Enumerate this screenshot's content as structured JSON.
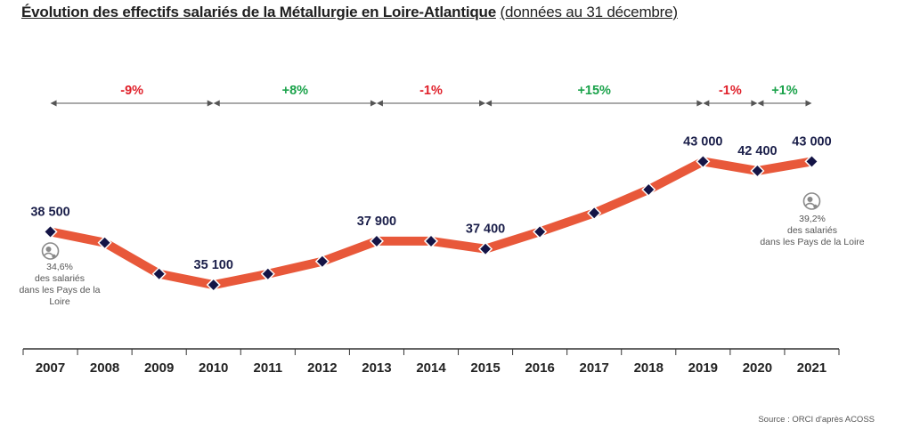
{
  "title": {
    "main": "Évolution des effectifs salariés de la Métallurgie en Loire-Atlantique",
    "sub": "(données au 31 décembre)"
  },
  "source": "Source : ORCI d'après ACOSS",
  "colors": {
    "line": "#e8583a",
    "marker": "#141446",
    "label": "#1b1f4a",
    "negative": "#e0202a",
    "positive": "#1aa24a",
    "arrow": "#555555",
    "axis": "#333333"
  },
  "notes": {
    "left": {
      "pct": "34,6%",
      "text1": "des salariés",
      "text2": "dans les Pays de la Loire",
      "icon": "globe-people-icon"
    },
    "right": {
      "pct": "39,2%",
      "text1": "des salariés",
      "text2": "dans les Pays de la Loire",
      "icon": "globe-people-icon"
    }
  },
  "chart_data": {
    "type": "line",
    "x": [
      "2007",
      "2008",
      "2009",
      "2010",
      "2011",
      "2012",
      "2013",
      "2014",
      "2015",
      "2016",
      "2017",
      "2018",
      "2019",
      "2020",
      "2021"
    ],
    "series": [
      {
        "values": [
          38500,
          37800,
          35800,
          35100,
          35800,
          36600,
          37900,
          37900,
          37400,
          38500,
          39700,
          41200,
          43000,
          42400,
          43000
        ]
      }
    ],
    "data_labels": [
      {
        "year": "2007",
        "text": "38 500"
      },
      {
        "year": "2010",
        "text": "35 100"
      },
      {
        "year": "2013",
        "text": "37 900"
      },
      {
        "year": "2015",
        "text": "37 400"
      },
      {
        "year": "2019",
        "text": "43 000"
      },
      {
        "year": "2020",
        "text": "42 400"
      },
      {
        "year": "2021",
        "text": "43 000"
      }
    ],
    "periods": [
      {
        "from": "2007",
        "to": "2010",
        "label": "-9%",
        "sign": "negative"
      },
      {
        "from": "2010",
        "to": "2013",
        "label": "+8%",
        "sign": "positive"
      },
      {
        "from": "2013",
        "to": "2015",
        "label": "-1%",
        "sign": "negative"
      },
      {
        "from": "2015",
        "to": "2019",
        "label": "+15%",
        "sign": "positive"
      },
      {
        "from": "2019",
        "to": "2020",
        "label": "-1%",
        "sign": "negative"
      },
      {
        "from": "2020",
        "to": "2021",
        "label": "+1%",
        "sign": "positive"
      }
    ],
    "ylim": [
      31000,
      46500
    ],
    "grid": false,
    "legend": "none"
  }
}
